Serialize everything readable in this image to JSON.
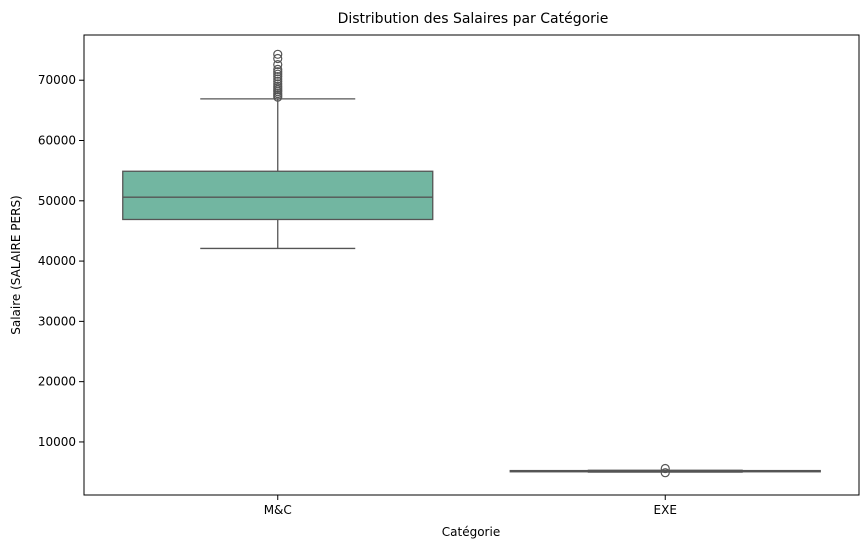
{
  "chart_data": {
    "type": "box",
    "title": "Distribution des Salaires par Catégorie",
    "xlabel": "Catégorie",
    "ylabel": "Salaire (SALAIRE PERS)",
    "ylim": [
      1200,
      77500
    ],
    "yticks": [
      10000,
      20000,
      30000,
      40000,
      50000,
      60000,
      70000
    ],
    "grid": false,
    "legend": "none",
    "box_color": "#72b6a1",
    "line_color": "#555555",
    "categories": [
      "M&C",
      "EXE"
    ],
    "boxes": [
      {
        "category": "M&C",
        "whisker_low": 42100,
        "q1": 46900,
        "median": 50600,
        "q3": 54900,
        "whisker_high": 66900,
        "outliers": [
          67200,
          67500,
          67800,
          68100,
          68400,
          68700,
          69000,
          69400,
          69800,
          70200,
          70600,
          71000,
          71400,
          71800,
          72600,
          73600,
          74300
        ]
      },
      {
        "category": "EXE",
        "whisker_low": 5000,
        "q1": 5050,
        "median": 5150,
        "q3": 5250,
        "whisker_high": 5300,
        "outliers": [
          4900,
          5600
        ]
      }
    ]
  }
}
